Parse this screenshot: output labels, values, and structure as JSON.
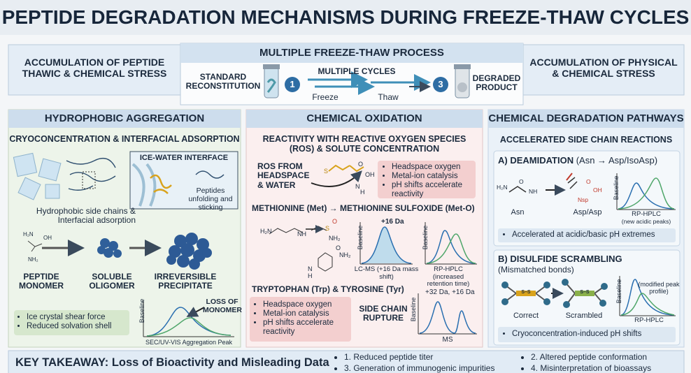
{
  "title": "PEPTIDE DEGRADATION MECHANISMS DURING FREEZE-THAW CYCLES",
  "process": {
    "left": "ACCUMULATION OF PEPTIDE THAWIC & CHEMICAL STRESS",
    "title": "MULTIPLE FREEZE-THAW PROCESS",
    "start": "STANDARD RECONSTITUTION",
    "step_1": "1",
    "cycles": "MULTIPLE CYCLES",
    "freeze": "Freeze",
    "thaw": "Thaw",
    "step_3": "3",
    "end": "DEGRADED PRODUCT",
    "right": "ACCUMULATION OF PHYSICAL & CHEMICAL STRESS"
  },
  "aggregation": {
    "title": "HYDROPHOBIC AGGREGATION",
    "subtitle": "CRYOCONCENTRATION & INTERFACIAL ADSORPTION",
    "interface": "ICE-WATER INTERFACE",
    "side_chains": "Hydrophobic side chains & Interfacial adsorption",
    "unfolding": "Peptides unfolding and sticking",
    "monomer_atoms": [
      "H₂N",
      "OH",
      "NH₂"
    ],
    "stages": [
      "PEPTIDE MONOMER",
      "SOLUBLE OLIGOMER",
      "IRREVERSIBLE PRECIPITATE"
    ],
    "bullets": [
      "Ice crystal shear force",
      "Reduced solvation shell"
    ],
    "chart": {
      "y_label": "Baseline",
      "annotation": "LOSS OF MONOMER",
      "caption": "SEC/UV-VIS Aggregation Peak"
    }
  },
  "oxidation": {
    "title": "CHEMICAL OXIDATION",
    "subtitle": "REACTIVITY WITH REACTIVE OXYGEN SPECIES (ROS) & SOLUTE CONCENTRATION",
    "ros": "ROS FROM HEADSPACE & WATER",
    "ros_atoms": [
      "S",
      "O",
      "OH",
      "N",
      "H"
    ],
    "bullets": [
      "Headspace oxygen",
      "Metal-ion catalysis",
      "pH shifts accelerate reactivity"
    ],
    "methionine": "METHIONINE (Met) → METHIONINE SULFOXIDE (Met-O)",
    "met_atoms": [
      "H₂N",
      "NH",
      "S",
      "O",
      "NH₂",
      "O",
      "NH₂",
      "N",
      "H"
    ],
    "lcms": {
      "shift": "+16 Da",
      "y_label": "Baseline",
      "caption": "LC-MS (+16 Da mass shift)"
    },
    "rphplc": {
      "y_label": "Baseline",
      "caption": "RP-HPLC (increased retention time)"
    },
    "tryptophan": "TRYPTOPHAN (Trp) & TYROSINE (Tyr)",
    "bullets_2": [
      "Headspace oxygen",
      "Metal-ion catalysis",
      "pH shifts accelerate reactivity"
    ],
    "rupture": "SIDE CHAIN RUPTURE",
    "ms": {
      "shift": "+32 Da, +16 Da",
      "y_label": "Baseline",
      "caption": "MS"
    }
  },
  "pathways": {
    "title": "CHEMICAL DEGRADATION PATHWAYS",
    "subtitle": "ACCELERATED SIDE CHAIN REACTIONS",
    "deamidation": {
      "title": "A) DEAMIDATION",
      "detail": "(Asn → Asp/IsoAsp)",
      "atoms": [
        "H₂N",
        "NH",
        "O",
        "O",
        "OH",
        "Nsp"
      ],
      "from": "Asn",
      "to": "Asp/Asp",
      "y_label": "Baseline",
      "caption": "RP-HPLC",
      "note": "(new acidic peaks)",
      "bullet": "Accelerated at acidic/basic pH extremes"
    },
    "disulfide": {
      "title": "B) DISULFIDE SCRAMBLING",
      "detail": "(Mismatched bonds)",
      "bond": "S–S",
      "from": "Correct",
      "to": "Scrambled",
      "y_label": "Baseline",
      "note": "(modified peak profile)",
      "caption": "RP-HPLC",
      "bullet": "Cryoconcentration-induced pH shifts"
    }
  },
  "takeaway": {
    "title": "KEY TAKEAWAY: Loss of Bioactivity and Misleading Data",
    "items": [
      "1. Reduced peptide titer",
      "2. Altered peptide conformation",
      "3. Generation of immunogenic impurities",
      "4. Misinterpretation of bioassays"
    ]
  }
}
